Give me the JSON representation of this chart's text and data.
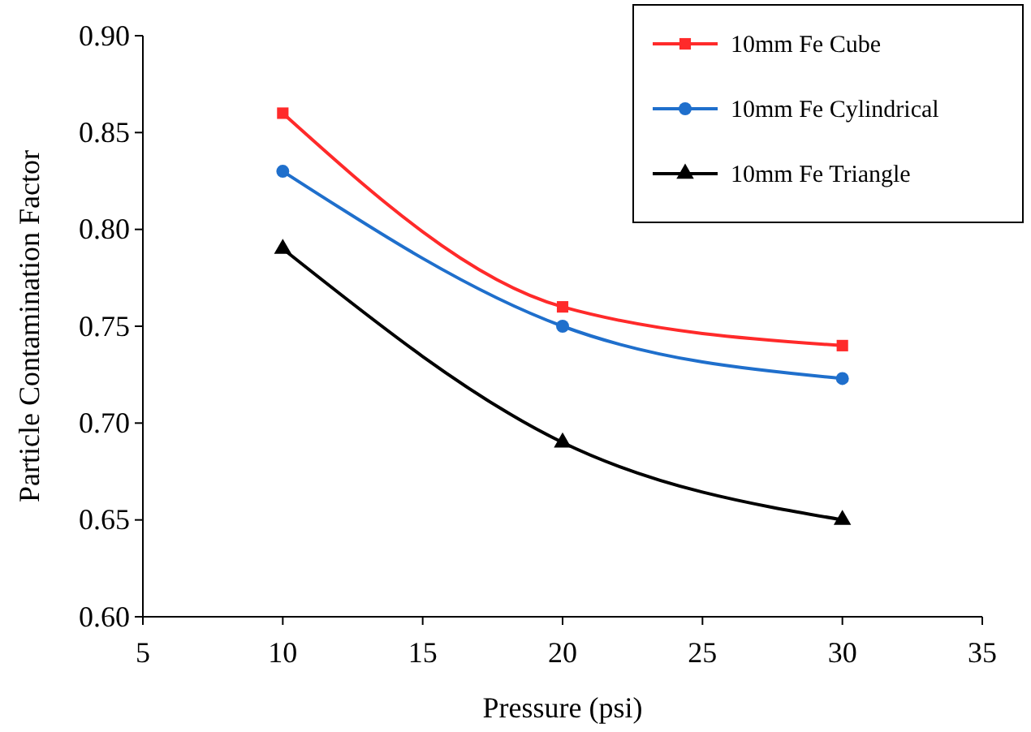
{
  "chart_data": {
    "type": "line",
    "xlabel": "Pressure (psi)",
    "ylabel": "Particle Contamination Factor",
    "x": [
      10,
      20,
      30
    ],
    "series": [
      {
        "name": "10mm Fe Cube",
        "color": "#ff2a2a",
        "marker": "square",
        "values": [
          0.86,
          0.76,
          0.74
        ]
      },
      {
        "name": "10mm Fe Cylindrical",
        "color": "#1f6fcc",
        "marker": "circle",
        "values": [
          0.83,
          0.75,
          0.723
        ]
      },
      {
        "name": "10mm Fe Triangle",
        "color": "#000000",
        "marker": "triangle",
        "values": [
          0.79,
          0.69,
          0.65
        ]
      }
    ],
    "xlim": [
      5,
      35
    ],
    "xticks": [
      5,
      10,
      15,
      20,
      25,
      30,
      35
    ],
    "ylim": [
      0.6,
      0.9
    ],
    "yticks": [
      {
        "value": 0.6,
        "label": "0.60"
      },
      {
        "value": 0.65,
        "label": "0.65"
      },
      {
        "value": 0.7,
        "label": "0.70"
      },
      {
        "value": 0.75,
        "label": "0.75"
      },
      {
        "value": 0.8,
        "label": "0.80"
      },
      {
        "value": 0.85,
        "label": "0.85"
      },
      {
        "value": 0.9,
        "label": "0.90"
      }
    ],
    "grid": false,
    "legend": "top right"
  }
}
